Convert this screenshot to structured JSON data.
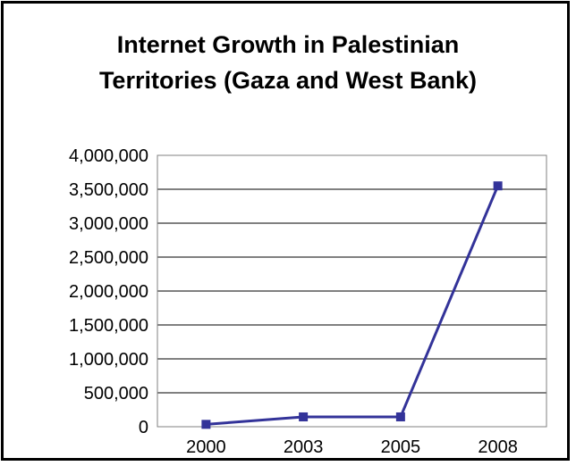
{
  "chart_data": {
    "type": "line",
    "title_lines": [
      "Internet Growth in Palestinian",
      "Territories (Gaza and West Bank)"
    ],
    "categories": [
      "2000",
      "2003",
      "2005",
      "2008"
    ],
    "series": [
      {
        "values": [
          35000,
          145000,
          145000,
          3550000
        ],
        "color": "#333399"
      }
    ],
    "yticks": [
      "0",
      "500,000",
      "1,000,000",
      "1,500,000",
      "2,000,000",
      "2,500,000",
      "3,000,000",
      "3,500,000",
      "4,000,000"
    ],
    "ylim": [
      0,
      4000000
    ],
    "grid": true,
    "legend": "none"
  }
}
